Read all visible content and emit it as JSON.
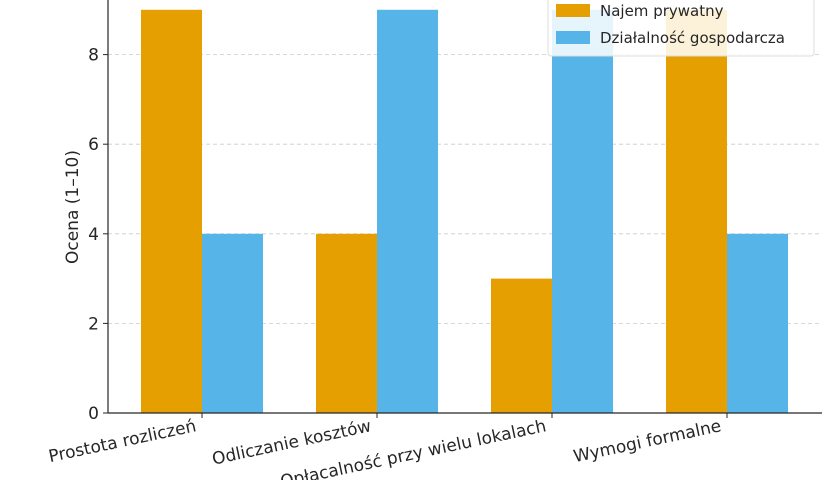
{
  "chart_data": {
    "type": "bar",
    "categories": [
      "Prostota rozliczeń",
      "Odliczanie kosztów",
      "Opłacalność przy wielu lokalach",
      "Wymogi formalne"
    ],
    "series": [
      {
        "name": "Najem prywatny",
        "values": [
          9,
          4,
          3,
          9
        ],
        "color": "#E69F00"
      },
      {
        "name": "Działalność gospodarcza",
        "values": [
          4,
          9,
          9,
          4
        ],
        "color": "#56B4E9"
      }
    ],
    "ylabel": "Ocena (1–10)",
    "ylim": [
      0,
      9
    ],
    "yticks": [
      0,
      2,
      4,
      6,
      8
    ],
    "grid": true,
    "legend_position": "top-right"
  }
}
